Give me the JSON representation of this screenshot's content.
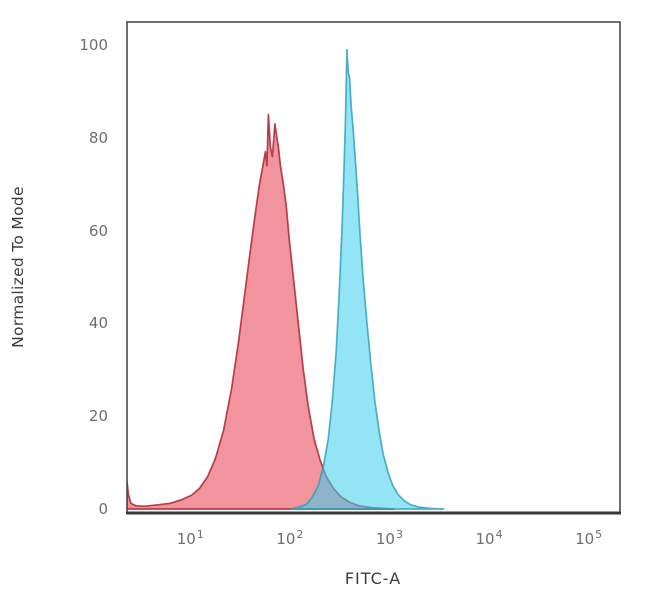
{
  "figure": {
    "background": "#ffffff"
  },
  "chart_data": {
    "type": "area",
    "title": "",
    "xlabel": "FITC-A",
    "ylabel": "Normalized To Mode",
    "grid": false,
    "legend": "none",
    "x_axis": {
      "scale": "log10",
      "tick_base": "10",
      "tick_exponents": [
        1,
        2,
        3,
        4,
        5
      ],
      "range_log10": [
        0.37,
        5.32
      ]
    },
    "y_axis": {
      "ticks": [
        0,
        20,
        40,
        60,
        80,
        100
      ],
      "range": [
        0,
        100
      ]
    },
    "colors": {
      "red_fill": "rgba(230,60,78,0.55)",
      "red_stroke": "rgba(172,38,52,0.85)",
      "cyan_fill": "rgba(58,206,236,0.55)",
      "cyan_stroke": "rgba(42,158,184,0.8)",
      "axis_border": "#4a4a4a",
      "baseline": "#383838",
      "tick_label": "#6e6e6e",
      "axis_title": "#3c3c3c"
    },
    "series": [
      {
        "name": "red-population",
        "description": "left red/salmon histogram peak, mode near x=60, double-spiked apex ~85",
        "fill": "rgba(230,60,78,0.55)",
        "stroke": "rgba(172,38,52,0.85)",
        "stroke_width": 1.7,
        "points": [
          [
            0.37,
            6
          ],
          [
            0.385,
            3
          ],
          [
            0.41,
            1.2
          ],
          [
            0.46,
            0.7
          ],
          [
            0.55,
            0.6
          ],
          [
            0.68,
            0.9
          ],
          [
            0.8,
            1.2
          ],
          [
            0.92,
            2
          ],
          [
            1.02,
            3
          ],
          [
            1.1,
            4.5
          ],
          [
            1.18,
            7
          ],
          [
            1.26,
            11
          ],
          [
            1.34,
            17
          ],
          [
            1.42,
            26
          ],
          [
            1.49,
            36
          ],
          [
            1.55,
            46
          ],
          [
            1.61,
            56
          ],
          [
            1.66,
            64
          ],
          [
            1.7,
            70
          ],
          [
            1.735,
            74
          ],
          [
            1.76,
            77
          ],
          [
            1.775,
            74
          ],
          [
            1.79,
            85
          ],
          [
            1.81,
            78
          ],
          [
            1.83,
            76
          ],
          [
            1.855,
            83
          ],
          [
            1.875,
            80
          ],
          [
            1.89,
            78
          ],
          [
            1.91,
            74
          ],
          [
            1.94,
            70
          ],
          [
            1.97,
            65
          ],
          [
            2.0,
            58
          ],
          [
            2.04,
            50
          ],
          [
            2.09,
            40
          ],
          [
            2.14,
            30
          ],
          [
            2.19,
            22
          ],
          [
            2.25,
            15
          ],
          [
            2.31,
            10.5
          ],
          [
            2.37,
            7
          ],
          [
            2.44,
            4.5
          ],
          [
            2.52,
            2.6
          ],
          [
            2.6,
            1.5
          ],
          [
            2.7,
            0.7
          ],
          [
            2.82,
            0.3
          ],
          [
            2.95,
            0.1
          ],
          [
            3.05,
            0
          ]
        ]
      },
      {
        "name": "cyan-population",
        "description": "right cyan histogram peak, mode near x=380, apex ~99",
        "fill": "rgba(58,206,236,0.55)",
        "stroke": "rgba(42,158,184,0.8)",
        "stroke_width": 1.7,
        "points": [
          [
            2.02,
            0
          ],
          [
            2.1,
            0.4
          ],
          [
            2.17,
            1
          ],
          [
            2.23,
            2.5
          ],
          [
            2.29,
            5
          ],
          [
            2.34,
            9
          ],
          [
            2.39,
            15
          ],
          [
            2.43,
            23
          ],
          [
            2.47,
            34
          ],
          [
            2.5,
            46
          ],
          [
            2.53,
            61
          ],
          [
            2.55,
            74
          ],
          [
            2.565,
            85
          ],
          [
            2.578,
            99
          ],
          [
            2.592,
            94
          ],
          [
            2.605,
            93
          ],
          [
            2.62,
            87
          ],
          [
            2.64,
            82
          ],
          [
            2.66,
            76
          ],
          [
            2.685,
            68
          ],
          [
            2.71,
            59
          ],
          [
            2.74,
            50
          ],
          [
            2.78,
            40
          ],
          [
            2.82,
            31
          ],
          [
            2.86,
            23
          ],
          [
            2.9,
            17
          ],
          [
            2.94,
            12
          ],
          [
            2.99,
            8
          ],
          [
            3.04,
            5
          ],
          [
            3.09,
            3.2
          ],
          [
            3.15,
            1.8
          ],
          [
            3.22,
            0.9
          ],
          [
            3.3,
            0.4
          ],
          [
            3.42,
            0.1
          ],
          [
            3.55,
            0
          ]
        ]
      }
    ]
  }
}
